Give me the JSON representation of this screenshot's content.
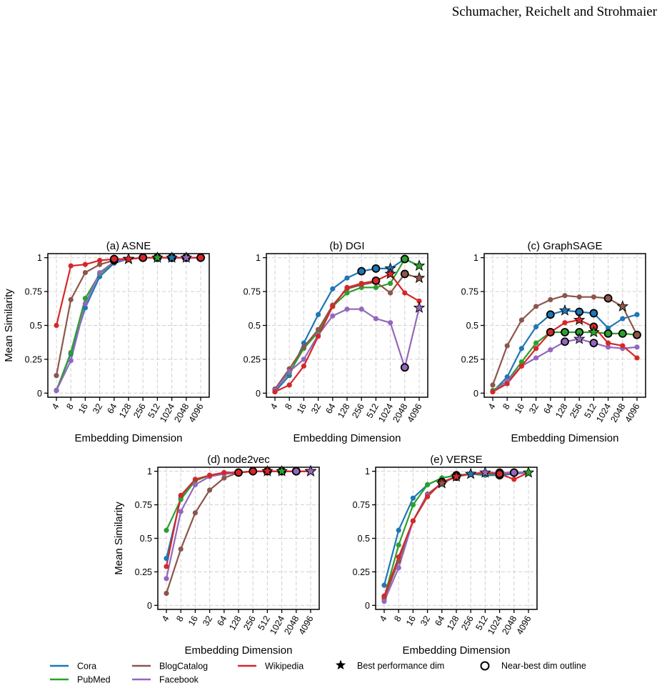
{
  "header": {
    "authors": "Schumacher, Reichelt and Strohmaier"
  },
  "legend": {
    "best": "Best performance dim",
    "near_best": "Near-best dim outline"
  },
  "chart_data": [
    {
      "type": "line",
      "title": "(a) ASNE",
      "xlabel": "Embedding Dimension",
      "ylabel": "Mean Similarity",
      "categories": [
        "4",
        "8",
        "16",
        "32",
        "64",
        "128",
        "256",
        "512",
        "1024",
        "2048",
        "4096"
      ],
      "ylim": [
        -0.03,
        1.03
      ],
      "yticks": [
        0,
        0.25,
        0.5,
        0.75,
        1
      ],
      "grid": true,
      "series": [
        {
          "name": "Cora",
          "color": "#1f77b4",
          "values": [
            0.02,
            0.29,
            0.63,
            0.86,
            0.96,
            0.99,
            1,
            1,
            1,
            1,
            1
          ],
          "best": "1024",
          "near_best": [
            "512",
            "2048"
          ]
        },
        {
          "name": "PubMed",
          "color": "#2ca02c",
          "values": [
            0.02,
            0.3,
            0.7,
            0.88,
            0.97,
            0.99,
            1,
            1,
            1,
            1,
            1
          ],
          "best": "512",
          "near_best": [
            "256",
            "1024"
          ]
        },
        {
          "name": "BlogCatalog",
          "color": "#8c564b",
          "values": [
            0.13,
            0.69,
            0.89,
            0.95,
            0.98,
            0.99,
            1,
            1,
            1,
            1,
            1
          ],
          "best": "128",
          "near_best": [
            "64",
            "256"
          ]
        },
        {
          "name": "Facebook",
          "color": "#9467bd",
          "values": [
            0.02,
            0.24,
            0.66,
            0.89,
            0.97,
            0.99,
            1,
            1,
            1,
            1,
            1
          ],
          "best": "2048",
          "near_best": [
            "1024",
            "4096"
          ]
        },
        {
          "name": "Wikipedia",
          "color": "#d62728",
          "values": [
            0.5,
            0.94,
            0.95,
            0.98,
            0.99,
            0.99,
            1,
            1,
            1,
            1,
            1
          ],
          "best": "128",
          "near_best": [
            "64",
            "256",
            "1024",
            "4096"
          ]
        }
      ]
    },
    {
      "type": "line",
      "title": "(b) DGI",
      "xlabel": "Embedding Dimension",
      "categories": [
        "4",
        "8",
        "16",
        "32",
        "64",
        "128",
        "256",
        "512",
        "1024",
        "2048",
        "4096"
      ],
      "ylim": [
        -0.03,
        1.03
      ],
      "yticks": [
        0,
        0.25,
        0.5,
        0.75,
        1
      ],
      "grid": true,
      "series": [
        {
          "name": "Cora",
          "color": "#1f77b4",
          "values": [
            0.01,
            0.13,
            0.37,
            0.58,
            0.77,
            0.85,
            0.9,
            0.92,
            0.92,
            0.99,
            0.94
          ],
          "best": "1024",
          "near_best": [
            "256",
            "512"
          ]
        },
        {
          "name": "PubMed",
          "color": "#2ca02c",
          "values": [
            0.03,
            0.15,
            0.33,
            0.45,
            0.64,
            0.74,
            0.78,
            0.78,
            0.81,
            0.99,
            0.94
          ],
          "best": "4096",
          "near_best": [
            "2048"
          ]
        },
        {
          "name": "BlogCatalog",
          "color": "#8c564b",
          "values": [
            0.03,
            0.18,
            0.34,
            0.47,
            0.65,
            0.77,
            0.8,
            0.82,
            0.74,
            0.88,
            0.85
          ],
          "best": "4096",
          "near_best": [
            "2048"
          ]
        },
        {
          "name": "Facebook",
          "color": "#9467bd",
          "values": [
            0.02,
            0.16,
            0.25,
            0.43,
            0.57,
            0.62,
            0.62,
            0.55,
            0.52,
            0.19,
            0.63
          ],
          "best": "4096",
          "near_best": [
            "2048"
          ]
        },
        {
          "name": "Wikipedia",
          "color": "#d62728",
          "values": [
            0.01,
            0.06,
            0.2,
            0.42,
            0.64,
            0.78,
            0.81,
            0.83,
            0.88,
            0.74,
            0.68
          ],
          "best": "1024",
          "near_best": [
            "512"
          ]
        }
      ]
    },
    {
      "type": "line",
      "title": "(c) GraphSAGE",
      "xlabel": "Embedding Dimension",
      "categories": [
        "4",
        "8",
        "16",
        "32",
        "64",
        "128",
        "256",
        "512",
        "1024",
        "2048",
        "4096"
      ],
      "ylim": [
        -0.03,
        1.03
      ],
      "yticks": [
        0,
        0.25,
        0.5,
        0.75,
        1
      ],
      "grid": true,
      "series": [
        {
          "name": "Cora",
          "color": "#1f77b4",
          "values": [
            0.01,
            0.12,
            0.33,
            0.49,
            0.58,
            0.61,
            0.6,
            0.59,
            0.48,
            0.55,
            0.58
          ],
          "best": "128",
          "near_best": [
            "64",
            "256",
            "512"
          ]
        },
        {
          "name": "PubMed",
          "color": "#2ca02c",
          "values": [
            0.02,
            0.09,
            0.23,
            0.37,
            0.45,
            0.45,
            0.45,
            0.45,
            0.44,
            0.44,
            0.43
          ],
          "best": "512",
          "near_best": [
            "64",
            "128",
            "256",
            "1024",
            "2048"
          ]
        },
        {
          "name": "BlogCatalog",
          "color": "#8c564b",
          "values": [
            0.06,
            0.35,
            0.54,
            0.64,
            0.69,
            0.72,
            0.71,
            0.71,
            0.7,
            0.64,
            0.43
          ],
          "best": "2048",
          "near_best": [
            "1024",
            "4096"
          ]
        },
        {
          "name": "Facebook",
          "color": "#9467bd",
          "values": [
            0.01,
            0.09,
            0.2,
            0.26,
            0.32,
            0.38,
            0.4,
            0.37,
            0.34,
            0.33,
            0.34
          ],
          "best": "256",
          "near_best": [
            "128",
            "512"
          ]
        },
        {
          "name": "Wikipedia",
          "color": "#d62728",
          "values": [
            0.01,
            0.07,
            0.2,
            0.33,
            0.45,
            0.52,
            0.54,
            0.49,
            0.37,
            0.35,
            0.26
          ],
          "best": "256",
          "near_best": [
            "64",
            "512"
          ]
        }
      ]
    },
    {
      "type": "line",
      "title": "(d) node2vec",
      "xlabel": "Embedding Dimension",
      "ylabel": "Mean Similarity",
      "categories": [
        "4",
        "8",
        "16",
        "32",
        "64",
        "128",
        "256",
        "512",
        "1024",
        "2048",
        "4096"
      ],
      "ylim": [
        -0.03,
        1.03
      ],
      "yticks": [
        0,
        0.25,
        0.5,
        0.75,
        1
      ],
      "grid": true,
      "series": [
        {
          "name": "Cora",
          "color": "#1f77b4",
          "values": [
            0.35,
            0.8,
            0.93,
            0.97,
            0.99,
            0.99,
            1,
            1,
            1,
            1,
            1
          ],
          "best": "4096",
          "near_best": [
            "2048"
          ]
        },
        {
          "name": "PubMed",
          "color": "#2ca02c",
          "values": [
            0.56,
            0.79,
            0.93,
            0.97,
            0.98,
            0.99,
            1,
            1,
            1,
            1,
            1
          ],
          "best": "1024",
          "near_best": [
            "512",
            "2048"
          ]
        },
        {
          "name": "BlogCatalog",
          "color": "#8c564b",
          "values": [
            0.09,
            0.42,
            0.69,
            0.86,
            0.95,
            0.99,
            1,
            1,
            1,
            1,
            1
          ],
          "best": "4096",
          "near_best": [
            "2048"
          ]
        },
        {
          "name": "Facebook",
          "color": "#9467bd",
          "values": [
            0.2,
            0.7,
            0.9,
            0.96,
            0.98,
            0.99,
            1,
            1,
            1,
            1,
            1
          ],
          "best": "4096",
          "near_best": [
            "2048"
          ]
        },
        {
          "name": "Wikipedia",
          "color": "#d62728",
          "values": [
            0.29,
            0.82,
            0.94,
            0.97,
            0.99,
            0.99,
            1,
            1,
            1,
            1,
            1
          ],
          "best": "512",
          "near_best": [
            "128",
            "256",
            "1024"
          ]
        }
      ]
    },
    {
      "type": "line",
      "title": "(e) VERSE",
      "xlabel": "Embedding Dimension",
      "categories": [
        "4",
        "8",
        "16",
        "32",
        "64",
        "128",
        "256",
        "512",
        "1024",
        "2048",
        "4096"
      ],
      "ylim": [
        -0.03,
        1.03
      ],
      "yticks": [
        0,
        0.25,
        0.5,
        0.75,
        1
      ],
      "grid": true,
      "series": [
        {
          "name": "Cora",
          "color": "#1f77b4",
          "values": [
            0.15,
            0.56,
            0.8,
            0.9,
            0.95,
            0.97,
            0.98,
            0.97,
            0.97,
            0.98,
            0.99
          ],
          "best": "256",
          "near_best": [
            "128",
            "1024"
          ]
        },
        {
          "name": "PubMed",
          "color": "#2ca02c",
          "values": [
            0.06,
            0.45,
            0.75,
            0.9,
            0.95,
            0.97,
            0.98,
            0.98,
            0.98,
            0.99,
            0.99
          ],
          "best": "4096",
          "near_best": [
            "2048"
          ]
        },
        {
          "name": "BlogCatalog",
          "color": "#8c564b",
          "values": [
            0.05,
            0.33,
            0.63,
            0.83,
            0.91,
            0.96,
            0.98,
            0.99,
            0.98,
            0.99,
            0.99
          ],
          "best": "64",
          "near_best": [
            "128"
          ]
        },
        {
          "name": "Facebook",
          "color": "#9467bd",
          "values": [
            0.03,
            0.28,
            0.63,
            0.82,
            0.91,
            0.96,
            0.98,
            0.99,
            0.99,
            0.99,
            0.99
          ],
          "best": "512",
          "near_best": [
            "1024",
            "2048"
          ]
        },
        {
          "name": "Wikipedia",
          "color": "#d62728",
          "values": [
            0.07,
            0.36,
            0.63,
            0.81,
            0.92,
            0.96,
            0.98,
            0.99,
            0.98,
            0.94,
            0.99
          ],
          "best": "128",
          "near_best": [
            "64",
            "1024"
          ]
        }
      ]
    }
  ]
}
